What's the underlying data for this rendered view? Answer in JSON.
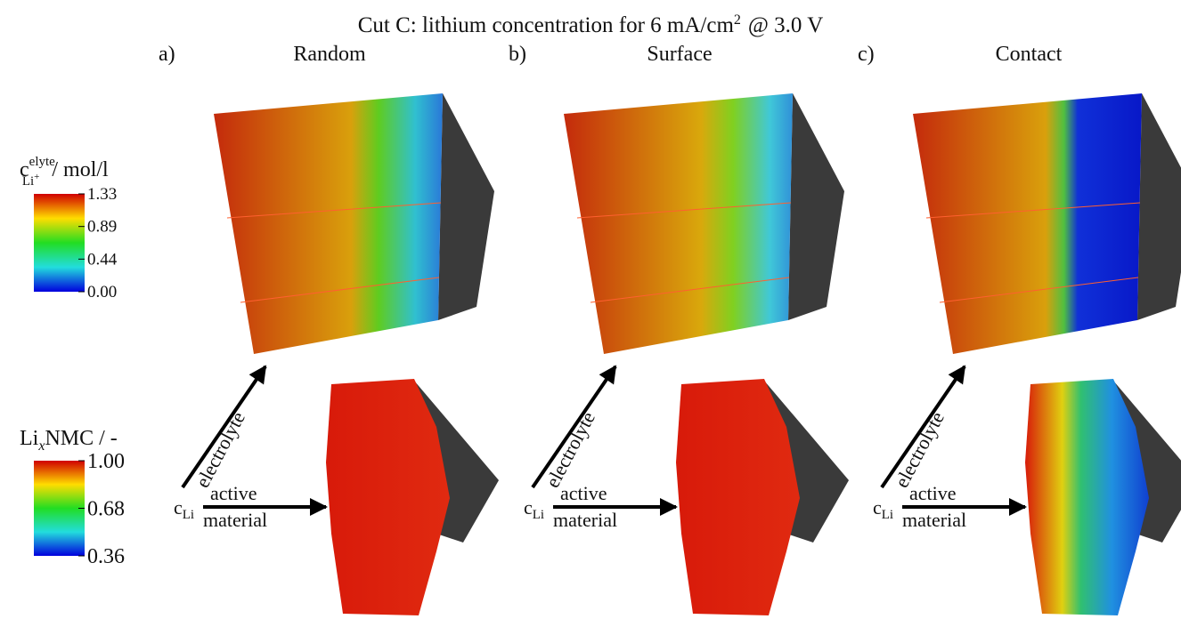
{
  "header": {
    "title_main": "Cut C: lithium concentration for 6 mA/cm",
    "title_sup": "2",
    "title_end": "@ 3.0 V"
  },
  "colorbars": [
    {
      "symbol": "c",
      "superscript": "elyte",
      "subscript": "Li",
      "subscript_sup": "+",
      "unit": "/ mol/l",
      "ticks": [
        "1.33",
        "0.89",
        "0.44",
        "0.00"
      ]
    },
    {
      "symbol": "Li",
      "subscript": "x",
      "unit": "NMC / -",
      "ticks": [
        "1.00",
        "0.68",
        "0.36"
      ]
    }
  ],
  "panels": [
    {
      "letter": "a)",
      "name": "Random",
      "arrow_up": "electrolyte",
      "arrow_right_top": "active",
      "arrow_right_bottom": "material",
      "origin": "c",
      "origin_sub": "Li"
    },
    {
      "letter": "b)",
      "name": "Surface",
      "arrow_up": "electrolyte",
      "arrow_right_top": "active",
      "arrow_right_bottom": "material",
      "origin": "c",
      "origin_sub": "Li"
    },
    {
      "letter": "c)",
      "name": "Contact",
      "arrow_up": "electrolyte",
      "arrow_right_top": "active",
      "arrow_right_bottom": "material",
      "origin": "c",
      "origin_sub": "Li"
    }
  ]
}
